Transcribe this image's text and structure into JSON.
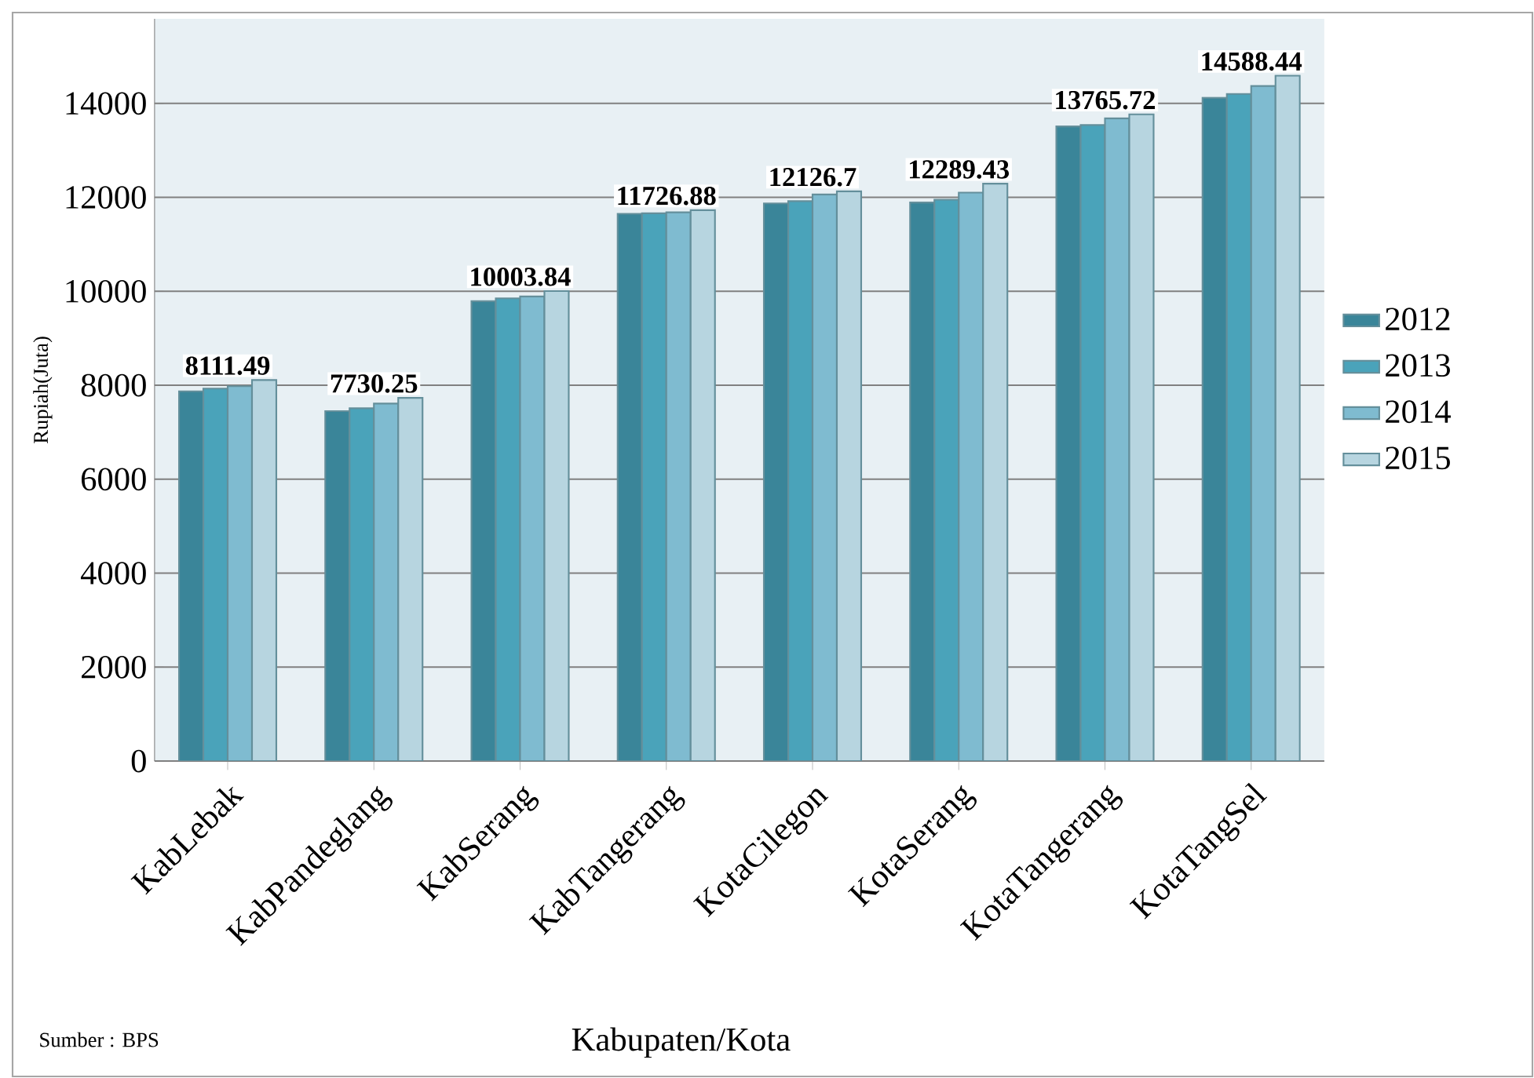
{
  "chart_data": {
    "type": "bar",
    "xlabel": "Kabupaten/Kota",
    "ylabel": "Rupiah(Juta)",
    "categories": [
      "KabLebak",
      "KabPandeglang",
      "KabSerang",
      "KabTangerang",
      "KotaCilegon",
      "KotaSerang",
      "KotaTangerang",
      "KotaTangSel"
    ],
    "series": [
      {
        "name": "2012",
        "color": "#3a8599",
        "values": [
          7870,
          7450,
          9790,
          11650,
          11870,
          11890,
          13510,
          14120
        ]
      },
      {
        "name": "2013",
        "color": "#4aa3ba",
        "values": [
          7930,
          7510,
          9850,
          11660,
          11920,
          11950,
          13540,
          14200
        ]
      },
      {
        "name": "2014",
        "color": "#7fbbd0",
        "values": [
          7980,
          7610,
          9890,
          11680,
          12060,
          12100,
          13680,
          14370
        ]
      },
      {
        "name": "2015",
        "color": "#b7d5e0",
        "values": [
          8111.49,
          7730.25,
          10003.84,
          11726.88,
          12126.7,
          12289.43,
          13765.72,
          14588.44
        ],
        "value_labels": [
          "8111.49",
          "7730.25",
          "10003.84",
          "11726.88",
          "12126.7",
          "12289.43",
          "13765.72",
          "14588.44"
        ]
      }
    ],
    "ylim": [
      0,
      15800
    ],
    "yticks": [
      0,
      2000,
      4000,
      6000,
      8000,
      10000,
      12000,
      14000
    ],
    "grid": "y",
    "legend": "right",
    "annotations": [
      "Sumber : BPS"
    ]
  }
}
